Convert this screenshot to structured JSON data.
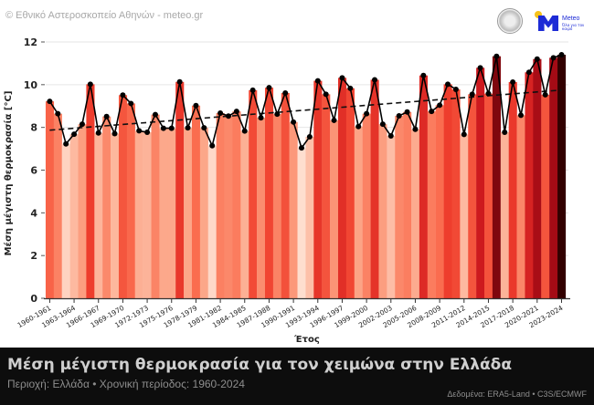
{
  "header": {
    "copyright": "© Εθνικό Αστεροσκοπείο Αθηνών - meteo.gr",
    "logo_text": "Meteo",
    "logo_subtext": "Όλα για τον καιρό"
  },
  "footer": {
    "title": "Μέση μέγιστη θερμοκρασία για τον χειμώνα στην Ελλάδα",
    "subtitle": "Περιοχή: Ελλάδα • Χρονική περίοδος: 1960-2024",
    "source": "Δεδομένα: ERA5-Land • C3S/ECMWF"
  },
  "chart_data": {
    "type": "bar",
    "xlabel": "Έτος",
    "ylabel": "Μέση μέγιστη θερμοκρασία [°C]",
    "ylim": [
      0,
      12
    ],
    "yticks": [
      "0",
      "2",
      "4",
      "6",
      "8",
      "10",
      "12"
    ],
    "grid": true,
    "first_season_start": 1960,
    "values": [
      9.22,
      8.64,
      7.23,
      7.68,
      8.15,
      10.02,
      7.74,
      8.51,
      7.71,
      9.51,
      9.12,
      7.84,
      7.77,
      8.6,
      7.96,
      7.96,
      10.13,
      7.98,
      9.02,
      7.98,
      7.14,
      8.67,
      8.53,
      8.75,
      7.83,
      9.74,
      8.45,
      9.86,
      8.62,
      9.61,
      8.25,
      7.04,
      7.56,
      10.18,
      9.55,
      8.33,
      10.32,
      9.83,
      8.04,
      8.64,
      10.23,
      8.15,
      7.6,
      8.54,
      8.72,
      7.91,
      10.43,
      8.75,
      9.04,
      10.02,
      9.78,
      7.67,
      9.55,
      10.79,
      9.58,
      11.33,
      7.77,
      10.12,
      8.57,
      10.58,
      11.2,
      9.53,
      11.26,
      11.4
    ],
    "trend": {
      "start": 7.87,
      "end": 9.75,
      "style": "dashed"
    },
    "line_overlay": true,
    "colormap": "Reds",
    "tick_labels": [
      "1960-1961",
      "1963-1964",
      "1966-1967",
      "1969-1970",
      "1972-1973",
      "1975-1976",
      "1978-1979",
      "1981-1982",
      "1984-1985",
      "1987-1988",
      "1990-1991",
      "1993-1994",
      "1996-1997",
      "1999-2000",
      "2002-2003",
      "2005-2006",
      "2008-2009",
      "2011-2012",
      "2014-2015",
      "2017-2018",
      "2020-2021",
      "2023-2024"
    ]
  }
}
